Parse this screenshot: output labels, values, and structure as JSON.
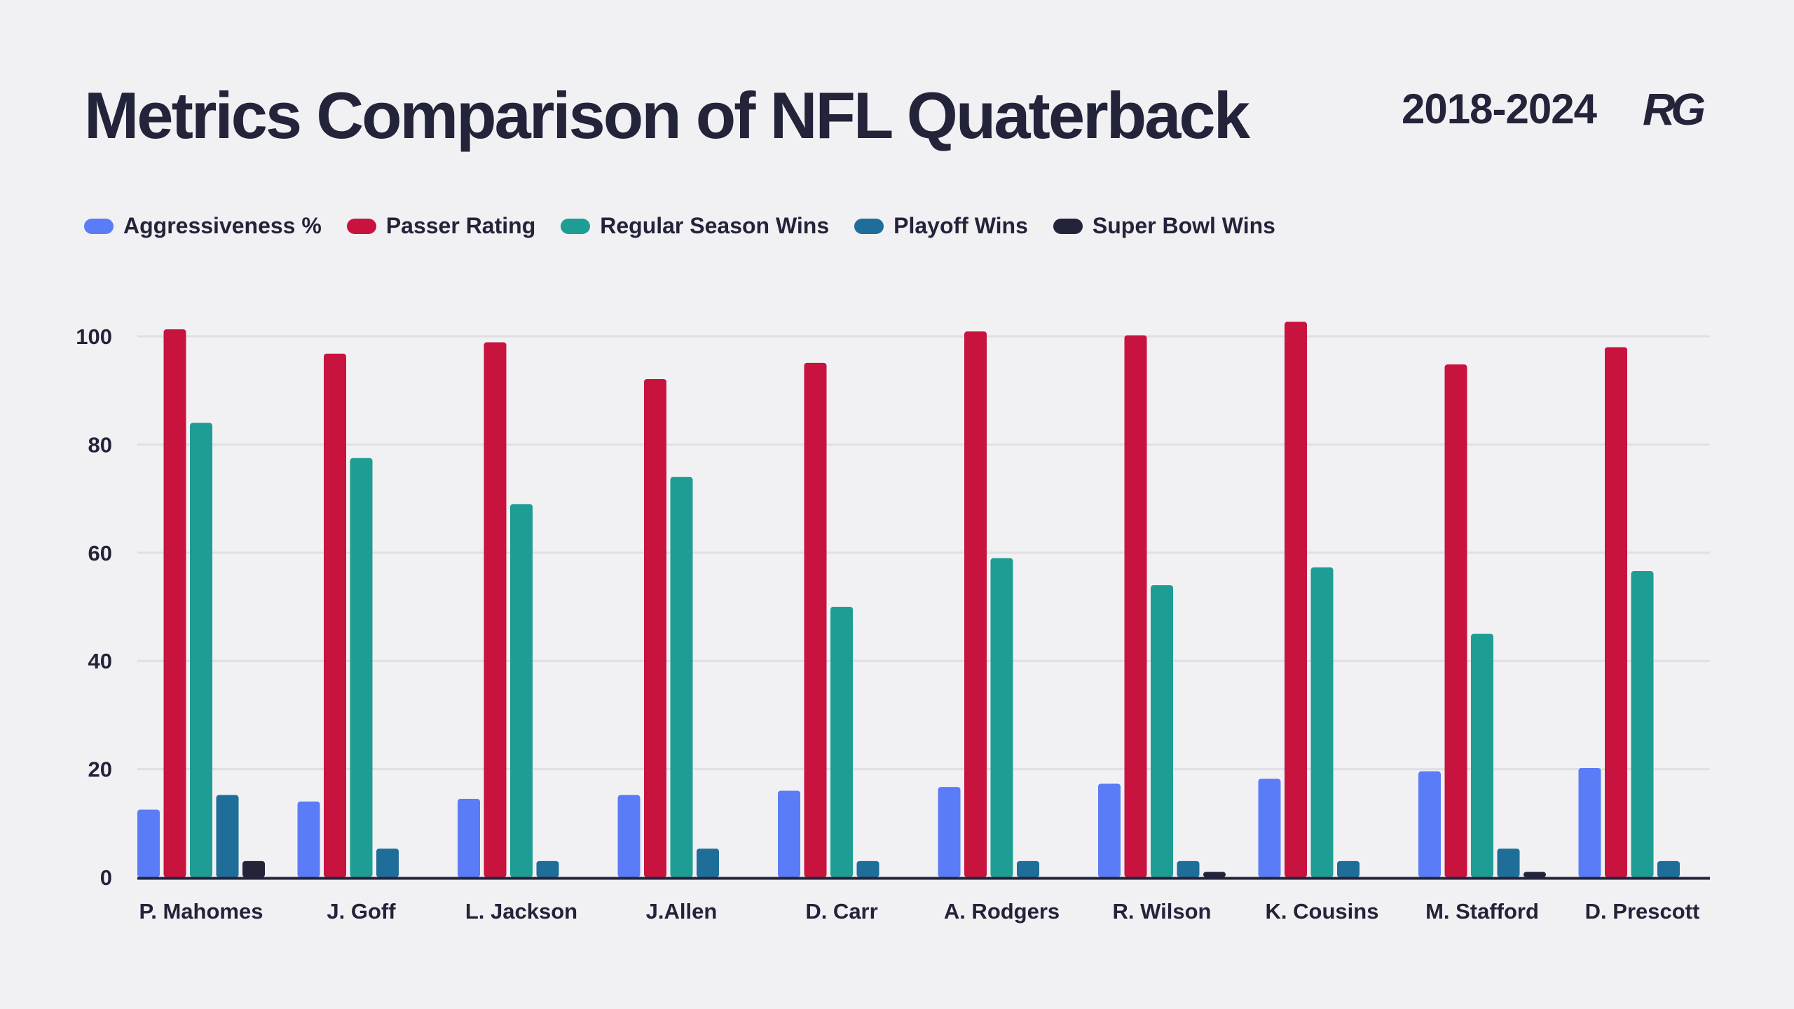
{
  "header": {
    "title": "Metrics Comparison of NFL Quaterback",
    "years": "2018-2024",
    "logo_text": "RG"
  },
  "colors": {
    "background": "#f1f1f4",
    "text": "#23233a",
    "grid": "#dfdfe4",
    "axis": "#23233a"
  },
  "chart_data": {
    "type": "bar",
    "title": "Metrics Comparison of NFL Quaterback",
    "xlabel": "",
    "ylabel": "",
    "ylim": [
      0,
      100
    ],
    "yticks": [
      0,
      20,
      40,
      60,
      80,
      100
    ],
    "grid": true,
    "legend_position": "top-left",
    "categories": [
      "P. Mahomes",
      "J. Goff",
      "L. Jackson",
      "J.Allen",
      "D. Carr",
      "A. Rodgers",
      "R. Wilson",
      "K. Cousins",
      "M. Stafford",
      "D. Prescott"
    ],
    "series": [
      {
        "name": "Aggressiveness %",
        "color": "#5b7cf7",
        "values": [
          12.5,
          14,
          14.5,
          15.2,
          16,
          16.7,
          17.3,
          18.2,
          19.6,
          20.2
        ]
      },
      {
        "name": "Passer Rating",
        "color": "#c8133f",
        "values": [
          101.3,
          96.8,
          98.9,
          92.1,
          95.1,
          100.9,
          100.2,
          102.7,
          94.8,
          98
        ]
      },
      {
        "name": "Regular Season Wins",
        "color": "#1e9d94",
        "values": [
          84,
          77.5,
          69,
          74,
          50,
          59,
          54,
          57.3,
          45,
          56.6
        ]
      },
      {
        "name": "Playoff Wins",
        "color": "#1e6e99",
        "values": [
          15.2,
          5.3,
          3,
          5.3,
          3,
          3,
          3,
          3,
          5.3,
          3
        ]
      },
      {
        "name": "Super Bowl Wins",
        "color": "#23233a",
        "values": [
          3,
          0,
          0,
          0,
          0,
          0,
          1,
          0,
          1,
          0
        ]
      }
    ]
  }
}
